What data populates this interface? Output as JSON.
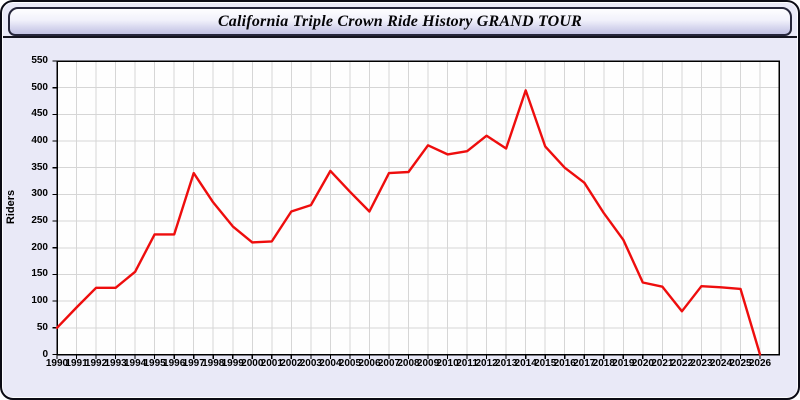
{
  "page": {
    "title": "California Triple Crown Ride History GRAND TOUR"
  },
  "chart_data": {
    "type": "line",
    "title": "California Triple Crown Ride History GRAND TOUR",
    "xlabel": "",
    "ylabel": "Riders",
    "ylim": [
      0,
      550
    ],
    "y_tick_step": 50,
    "y_ticks": [
      0,
      50,
      100,
      150,
      200,
      250,
      300,
      350,
      400,
      450,
      500,
      550
    ],
    "grid": true,
    "legend": "none",
    "categories": [
      "1990",
      "1991",
      "1992",
      "1993",
      "1994",
      "1995",
      "1996",
      "1997",
      "1998",
      "1999",
      "2000",
      "2001",
      "2002",
      "2003",
      "2004",
      "2005",
      "2006",
      "2007",
      "2008",
      "2009",
      "2010",
      "2011",
      "2012",
      "2013",
      "2014",
      "2015",
      "2016",
      "2017",
      "2018",
      "2019",
      "2020",
      "2021",
      "2022",
      "2023",
      "2024",
      "2025",
      "2026"
    ],
    "series": [
      {
        "name": "Riders",
        "color": "#ee0d0d",
        "values": [
          50,
          88,
          125,
          125,
          155,
          225,
          225,
          340,
          285,
          240,
          210,
          212,
          268,
          280,
          344,
          305,
          268,
          340,
          342,
          392,
          375,
          381,
          410,
          386,
          495,
          390,
          350,
          322,
          265,
          215,
          135,
          127,
          81,
          128,
          126,
          123,
          0
        ]
      }
    ]
  },
  "colors": {
    "page_background": "#e9e9f7",
    "plot_background": "#fefefe",
    "gridline": "#d6d6d6",
    "axis": "#000000",
    "line": "#ee0d0d",
    "border": "#0b0b14"
  }
}
